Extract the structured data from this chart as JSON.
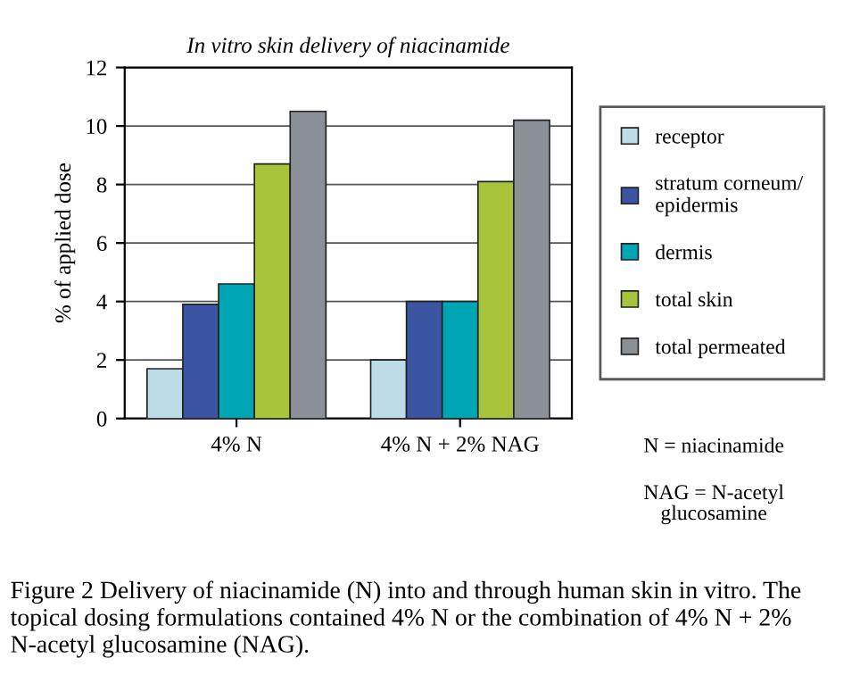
{
  "chart_data": {
    "type": "bar",
    "title": "In vitro skin delivery of niacinamide",
    "ylabel": "% of applied dose",
    "categories": [
      "4% N",
      "4% N + 2% NAG"
    ],
    "series": [
      {
        "name": "receptor",
        "color": "#bcdde6",
        "values": [
          1.7,
          2.0
        ]
      },
      {
        "name": "stratum corneum/epidermis",
        "color": "#3b55a3",
        "values": [
          3.9,
          4.0
        ]
      },
      {
        "name": "dermis",
        "color": "#00a5b5",
        "values": [
          4.6,
          4.0
        ]
      },
      {
        "name": "total skin",
        "color": "#a8c43a",
        "values": [
          8.7,
          8.1
        ]
      },
      {
        "name": "total permeated",
        "color": "#8a9096",
        "values": [
          10.5,
          10.2
        ]
      }
    ],
    "ylim": [
      0,
      12
    ],
    "yticks": [
      0,
      2,
      4,
      6,
      8,
      10,
      12
    ],
    "grid": "y",
    "legend": "right",
    "annotations": [
      "N = niacinamide",
      "NAG = N-acetyl glucosamine",
      "Figure 2 Delivery of niacinamide (N) into and through human skin in vitro. The topical dosing formulations contained 4% N or the combination of 4% N + 2% N-acetyl glucosamine (NAG)."
    ]
  }
}
